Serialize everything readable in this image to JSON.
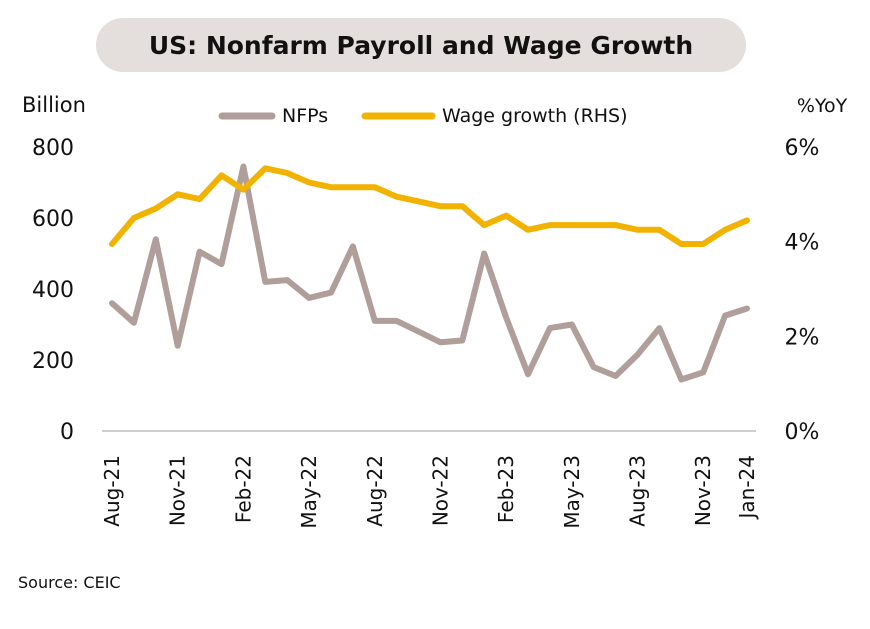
{
  "chart_data": {
    "type": "line",
    "title": "US: Nonfarm Payroll and Wage Growth",
    "ylabel_left": "Billion",
    "ylabel_right": "%YoY",
    "ylim_left": [
      0,
      800
    ],
    "ylim_right": [
      0,
      6
    ],
    "yticks_left": [
      "0",
      "200",
      "400",
      "600",
      "800"
    ],
    "yticks_right": [
      "0%",
      "2%",
      "4%",
      "6%"
    ],
    "xtick_labels": [
      {
        "index": 0,
        "label": "Aug-21"
      },
      {
        "index": 3,
        "label": "Nov-21"
      },
      {
        "index": 6,
        "label": "Feb-22"
      },
      {
        "index": 9,
        "label": "May-22"
      },
      {
        "index": 12,
        "label": "Aug-22"
      },
      {
        "index": 15,
        "label": "Nov-22"
      },
      {
        "index": 18,
        "label": "Feb-23"
      },
      {
        "index": 21,
        "label": "May-23"
      },
      {
        "index": 24,
        "label": "Aug-23"
      },
      {
        "index": 27,
        "label": "Nov-23"
      },
      {
        "index": 29,
        "label": "Jan-24"
      }
    ],
    "x": [
      "Aug-21",
      "Sep-21",
      "Oct-21",
      "Nov-21",
      "Dec-21",
      "Jan-22",
      "Feb-22",
      "Mar-22",
      "Apr-22",
      "May-22",
      "Jun-22",
      "Jul-22",
      "Aug-22",
      "Sep-22",
      "Oct-22",
      "Nov-22",
      "Dec-22",
      "Jan-23",
      "Feb-23",
      "Mar-23",
      "Apr-23",
      "May-23",
      "Jun-23",
      "Jul-23",
      "Aug-23",
      "Sep-23",
      "Oct-23",
      "Nov-23",
      "Dec-23",
      "Jan-24"
    ],
    "series": [
      {
        "name": "NFPs",
        "axis": "left",
        "color": "#b09e9a",
        "values": [
          360,
          305,
          540,
          240,
          505,
          470,
          745,
          420,
          425,
          375,
          390,
          520,
          310,
          310,
          280,
          250,
          255,
          500,
          320,
          160,
          290,
          300,
          180,
          155,
          215,
          290,
          145,
          165,
          325,
          345
        ]
      },
      {
        "name": "Wage growth (RHS)",
        "axis": "right",
        "color": "#f2b200",
        "values": [
          3.95,
          4.5,
          4.7,
          5.0,
          4.9,
          5.4,
          5.1,
          5.55,
          5.45,
          5.25,
          5.15,
          5.15,
          5.15,
          4.95,
          4.85,
          4.75,
          4.75,
          4.35,
          4.55,
          4.25,
          4.35,
          4.35,
          4.35,
          4.35,
          4.25,
          4.25,
          3.95,
          3.95,
          4.25,
          4.45
        ]
      }
    ],
    "legend": [
      {
        "label": "NFPs",
        "color": "#b09e9a"
      },
      {
        "label": "Wage growth (RHS)",
        "color": "#f2b200"
      }
    ],
    "legend_position": "top-center",
    "grid": false
  },
  "source": "Source: CEIC"
}
